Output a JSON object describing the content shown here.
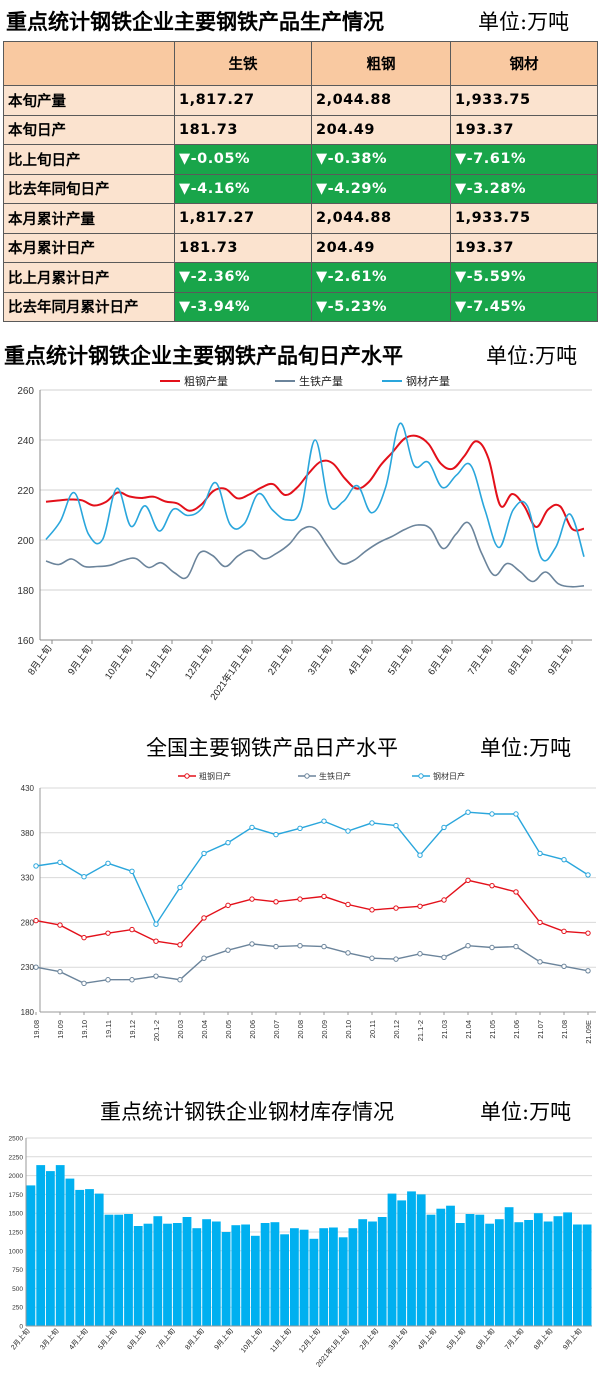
{
  "section1": {
    "title": "重点统计钢铁企业主要钢铁产品生产情况",
    "unit": "单位:万吨",
    "headers": [
      "",
      "生铁",
      "粗钢",
      "钢材"
    ],
    "rows": [
      {
        "label": "本旬产量",
        "values": [
          "1,817.27",
          "2,044.88",
          "1,933.75"
        ],
        "change": false
      },
      {
        "label": "本旬日产",
        "values": [
          "181.73",
          "204.49",
          "193.37"
        ],
        "change": false
      },
      {
        "label": "比上旬日产",
        "values": [
          "▼-0.05%",
          "▼-0.38%",
          "▼-7.61%"
        ],
        "change": true
      },
      {
        "label": "比去年同旬日产",
        "values": [
          "▼-4.16%",
          "▼-4.29%",
          "▼-3.28%"
        ],
        "change": true
      },
      {
        "label": "本月累计产量",
        "values": [
          "1,817.27",
          "2,044.88",
          "1,933.75"
        ],
        "change": false
      },
      {
        "label": "本月累计日产",
        "values": [
          "181.73",
          "204.49",
          "193.37"
        ],
        "change": false
      },
      {
        "label": "比上月累计日产",
        "values": [
          "▼-2.36%",
          "▼-2.61%",
          "▼-5.59%"
        ],
        "change": true
      },
      {
        "label": "比去年同月累计日产",
        "values": [
          "▼-3.94%",
          "▼-5.23%",
          "▼-7.45%"
        ],
        "change": true
      }
    ]
  },
  "section2": {
    "title": "重点统计钢铁企业主要钢铁产品旬日产水平",
    "unit": "单位:万吨"
  },
  "section3": {
    "title": "全国主要钢铁产品日产水平",
    "unit": "单位:万吨"
  },
  "section4": {
    "title": "重点统计钢铁企业钢材库存情况",
    "unit": "单位:万吨"
  },
  "colors": {
    "crude": "#e3101a",
    "pig": "#6b849b",
    "steel": "#2aa6dc",
    "table_header": "#f9c9a1",
    "table_cell": "#fbe3cf",
    "table_green": "#19a54a",
    "stock_bar": "#00b0f0"
  },
  "chart_data": [
    {
      "type": "line",
      "title": "",
      "ylim": [
        160,
        260
      ],
      "yticks": [
        160,
        180,
        200,
        220,
        240,
        260
      ],
      "xtick_labels": [
        "8月上旬",
        "9月上旬",
        "10月上旬",
        "11月上旬",
        "12月上旬",
        "2021年1月上旬",
        "2月上旬",
        "3月上旬",
        "4月上旬",
        "5月上旬",
        "6月上旬",
        "7月上旬",
        "8月上旬",
        "9月上旬"
      ],
      "legend_position": "top",
      "series": [
        {
          "name": "粗钢产量",
          "color": "#e3101a",
          "values": [
            215.3,
            215.8,
            216.2,
            215.9,
            213.8,
            215.2,
            219.0,
            217.4,
            216.8,
            217.3,
            215.4,
            214.6,
            211.7,
            214.2,
            219.6,
            220.5,
            216.7,
            218.2,
            220.9,
            222.3,
            218.0,
            221.0,
            226.8,
            231.4,
            230.6,
            224.6,
            220.6,
            223.2,
            230.0,
            235.2,
            240.6,
            241.6,
            238.4,
            230.7,
            228.5,
            233.6,
            239.5,
            232.7,
            213.8,
            218.4,
            213.6,
            205.2,
            212.2,
            213.5,
            204.5,
            204.5
          ]
        },
        {
          "name": "生铁产量",
          "color": "#6b849b",
          "values": [
            191.6,
            190.2,
            192.4,
            189.4,
            189.4,
            189.9,
            191.8,
            192.6,
            189.0,
            190.9,
            187.0,
            185.1,
            194.9,
            193.8,
            189.4,
            193.7,
            195.9,
            192.5,
            194.7,
            198.4,
            204.3,
            204.6,
            197.5,
            190.8,
            191.8,
            195.7,
            199.0,
            201.4,
            204.2,
            206.0,
            204.6,
            196.6,
            202.3,
            206.8,
            194.8,
            185.9,
            190.6,
            187.4,
            183.4,
            187.2,
            182.5,
            181.3,
            181.7
          ]
        },
        {
          "name": "钢材产量",
          "color": "#2aa6dc",
          "values": [
            200.2,
            207.4,
            218.9,
            202.3,
            200.2,
            220.7,
            205.5,
            213.7,
            203.6,
            212.3,
            209.8,
            212.6,
            222.9,
            206.2,
            206.5,
            218.5,
            212.0,
            208.1,
            212.1,
            240.0,
            214.3,
            215.4,
            221.7,
            210.9,
            221.3,
            246.6,
            229.8,
            231.1,
            221.0,
            226.0,
            229.9,
            212.1,
            197.0,
            212.1,
            213.6,
            192.7,
            197.1,
            210.4,
            193.3
          ]
        }
      ]
    },
    {
      "type": "line",
      "title": "",
      "ylim": [
        180,
        430
      ],
      "yticks": [
        180,
        230,
        280,
        330,
        380,
        430
      ],
      "categories": [
        "19.08",
        "19.09",
        "19.10",
        "19.11",
        "19.12",
        "20.1-2",
        "20.03",
        "20.04",
        "20.05",
        "20.06",
        "20.07",
        "20.08",
        "20.09",
        "20.10",
        "20.11",
        "20.12",
        "21.1-2",
        "21.03",
        "21.04",
        "21.05",
        "21.06",
        "21.07",
        "21.08",
        "21.09E"
      ],
      "legend_position": "top",
      "series": [
        {
          "name": "粗钢日产",
          "color": "#e3101a",
          "values": [
            282,
            277,
            263,
            268,
            272,
            259,
            255,
            285,
            299,
            306,
            303,
            306,
            309,
            300,
            294,
            296,
            298,
            305,
            327,
            321,
            314,
            280,
            270,
            268
          ]
        },
        {
          "name": "生铁日产",
          "color": "#6b849b",
          "values": [
            230,
            225,
            212,
            216,
            216,
            220,
            216,
            240,
            249,
            256,
            253,
            254,
            253,
            246,
            240,
            239,
            245,
            241,
            254,
            252,
            253,
            236,
            231,
            226
          ]
        },
        {
          "name": "钢材日产",
          "color": "#2aa6dc",
          "values": [
            343,
            347,
            331,
            346,
            337,
            278,
            319,
            357,
            369,
            386,
            378,
            385,
            393,
            382,
            391,
            388,
            355,
            386,
            403,
            401,
            401,
            357,
            350,
            333
          ]
        }
      ]
    },
    {
      "type": "bar",
      "title": "",
      "ylim": [
        0,
        2500
      ],
      "yticks": [
        0,
        250,
        500,
        750,
        1000,
        1250,
        1500,
        1750,
        2000,
        2250,
        2500
      ],
      "xtick_labels": [
        "2月上旬",
        "3月上旬",
        "4月上旬",
        "5月上旬",
        "6月上旬",
        "7月上旬",
        "8月上旬",
        "9月上旬",
        "10月上旬",
        "11月上旬",
        "12月上旬",
        "2021年1月上旬",
        "2月上旬",
        "3月上旬",
        "4月上旬",
        "5月上旬",
        "6月上旬",
        "7月上旬",
        "8月上旬",
        "9月上旬"
      ],
      "series": [
        {
          "name": "钢材库存",
          "color": "#00b0f0",
          "values": [
            1870,
            2140,
            2060,
            2140,
            1960,
            1810,
            1820,
            1760,
            1480,
            1480,
            1490,
            1330,
            1360,
            1460,
            1360,
            1370,
            1450,
            1300,
            1420,
            1390,
            1250,
            1340,
            1350,
            1200,
            1370,
            1380,
            1220,
            1300,
            1280,
            1160,
            1300,
            1310,
            1180,
            1300,
            1420,
            1390,
            1450,
            1760,
            1670,
            1790,
            1750,
            1480,
            1560,
            1600,
            1370,
            1490,
            1480,
            1360,
            1420,
            1580,
            1380,
            1410,
            1500,
            1390,
            1460,
            1510,
            1350,
            1350
          ]
        }
      ]
    }
  ]
}
